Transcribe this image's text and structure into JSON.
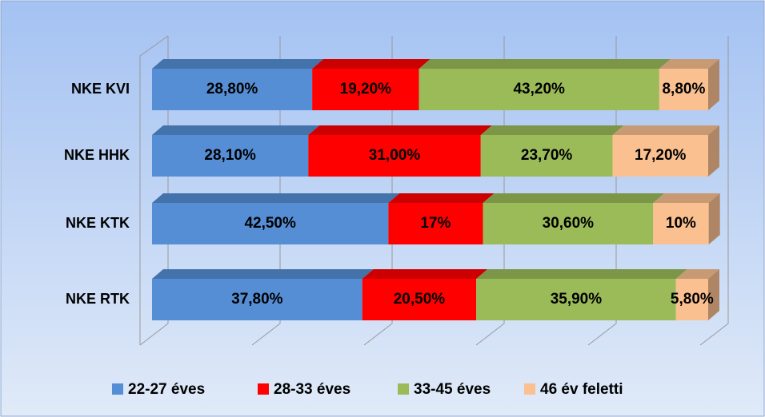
{
  "chart_data": {
    "type": "bar",
    "orientation": "horizontal",
    "stacked": true,
    "categories": [
      "NKE KVI",
      "NKE HHK",
      "NKE KTK",
      "NKE RTK"
    ],
    "series": [
      {
        "name": "22-27 éves",
        "color": "#558ed5",
        "values": [
          28.8,
          28.1,
          42.5,
          37.8
        ],
        "value_labels": [
          "28,80%",
          "28,10%",
          "42,50%",
          "37,80%"
        ]
      },
      {
        "name": "28-33 éves",
        "color": "#ff0000",
        "values": [
          19.2,
          31.0,
          17,
          20.5
        ],
        "value_labels": [
          "19,20%",
          "31,00%",
          "17%",
          "20,50%"
        ]
      },
      {
        "name": "33-45 éves",
        "color": "#9bbb59",
        "values": [
          43.2,
          23.7,
          30.6,
          35.9
        ],
        "value_labels": [
          "43,20%",
          "23,70%",
          "30,60%",
          "35,90%"
        ]
      },
      {
        "name": "46 év feletti",
        "color": "#fac090",
        "values": [
          8.8,
          17.2,
          10,
          5.8
        ],
        "value_labels": [
          "8,80%",
          "17,20%",
          "10%",
          "5,80%"
        ]
      }
    ],
    "xlim": [
      0,
      100
    ],
    "xticks": [
      0,
      20,
      40,
      60,
      80,
      100
    ],
    "grid": true,
    "legend": "bottom"
  }
}
